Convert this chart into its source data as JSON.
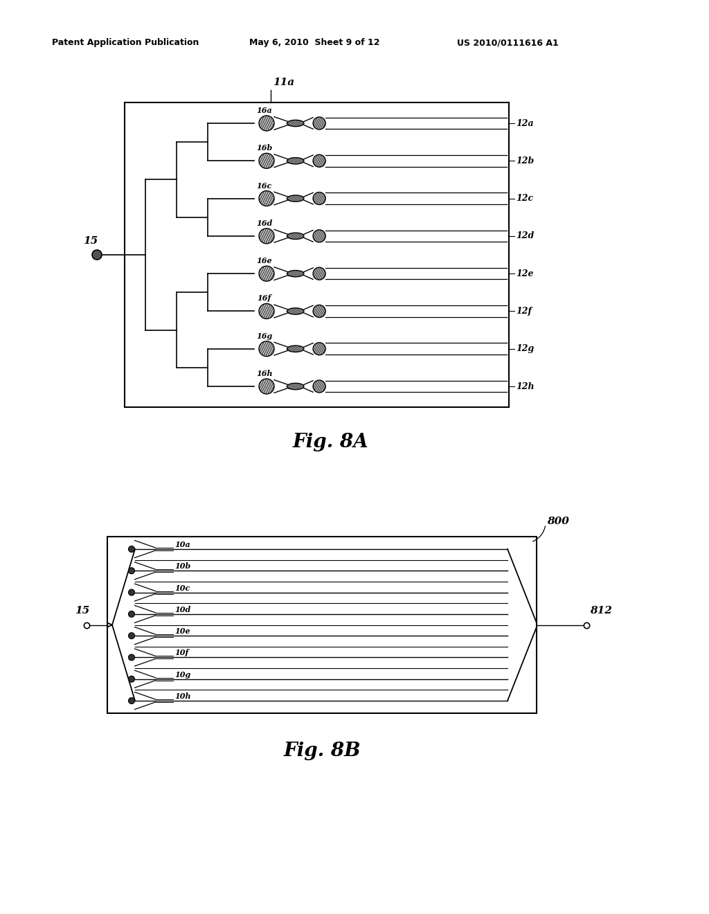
{
  "bg_color": "#ffffff",
  "header_left": "Patent Application Publication",
  "header_center": "May 6, 2010  Sheet 9 of 12",
  "header_right": "US 2010/0111616 A1",
  "fig8a_caption": "Fig. 8A",
  "fig8b_caption": "Fig. 8B",
  "fig8a_label": "11a",
  "fig8a_15_label": "15",
  "fig8a_channels": [
    "16a",
    "16b",
    "16c",
    "16d",
    "16e",
    "16f",
    "16g",
    "16h"
  ],
  "fig8a_right_labels": [
    "12a",
    "12b",
    "12c",
    "12d",
    "12e",
    "12f",
    "12g",
    "12h"
  ],
  "fig8b_label": "800",
  "fig8b_15_label": "15",
  "fig8b_812_label": "812",
  "fig8b_channels": [
    "10a",
    "10b",
    "10c",
    "10d",
    "10e",
    "10f",
    "10g",
    "10h"
  ]
}
